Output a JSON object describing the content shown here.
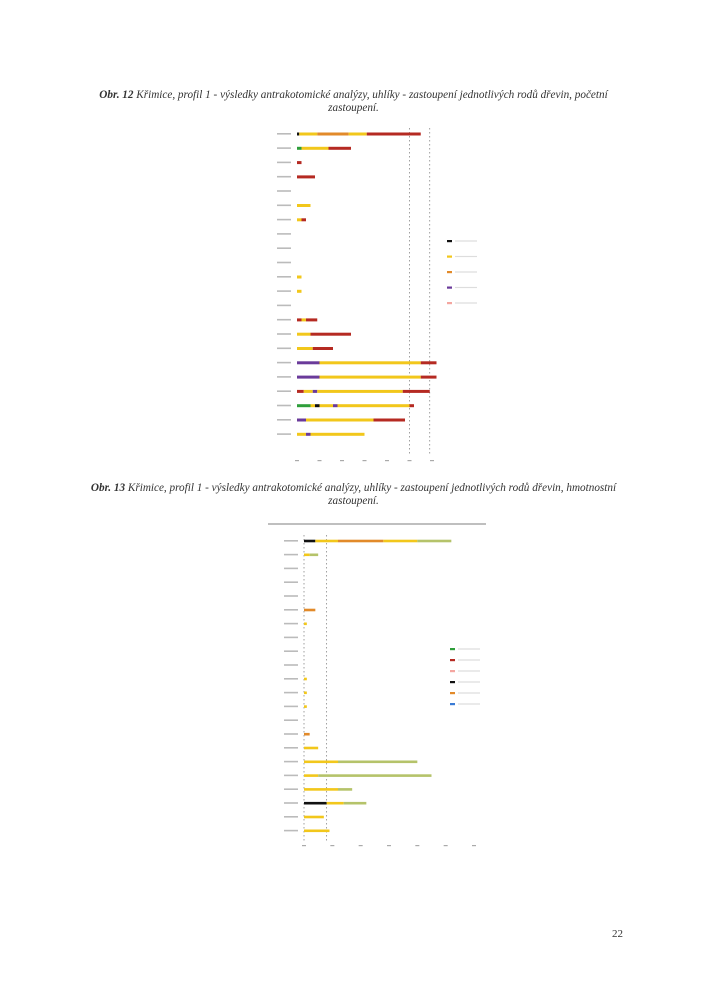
{
  "figures": [
    {
      "label": "Obr. 12",
      "caption": "Křimice, profil 1 - výsledky antrakotomické analýzy, uhlíky - zastoupení jednotlivých rodů dřevin, početní zastoupení."
    },
    {
      "label": "Obr. 13",
      "caption": "Křimice, profil 1 - výsledky antrakotomické analýzy, uhlíky - zastoupení jednotlivých rodů dřevin, hmotnostní zastoupení."
    }
  ],
  "page_number": "22",
  "chart_data": [
    {
      "type": "bar",
      "stacked": true,
      "orientation": "horizontal",
      "title": "",
      "xlabel": "",
      "ylabel": "",
      "xlim": [
        0,
        60
      ],
      "legend_position": "right",
      "colors": {
        "green": "#2e9e3a",
        "yellow": "#f2c71b",
        "orange": "#e28a2a",
        "red": "#b52a22",
        "purple": "#6a3a9a",
        "black": "#111111"
      },
      "rows": [
        {
          "segments": [
            [
              "black",
              1
            ],
            [
              "yellow",
              8
            ],
            [
              "orange",
              14
            ],
            [
              "yellow",
              8
            ],
            [
              "red",
              24
            ]
          ]
        },
        {
          "segments": [
            [
              "green",
              2
            ],
            [
              "yellow",
              12
            ],
            [
              "red",
              10
            ]
          ]
        },
        {
          "segments": [
            [
              "red",
              2
            ]
          ]
        },
        {
          "segments": [
            [
              "red",
              8
            ]
          ]
        },
        {
          "segments": []
        },
        {
          "segments": [
            [
              "yellow",
              6
            ]
          ]
        },
        {
          "segments": [
            [
              "yellow",
              2
            ],
            [
              "red",
              2
            ]
          ]
        },
        {
          "segments": []
        },
        {
          "segments": []
        },
        {
          "segments": []
        },
        {
          "segments": [
            [
              "yellow",
              2
            ]
          ]
        },
        {
          "segments": [
            [
              "yellow",
              2
            ]
          ]
        },
        {
          "segments": []
        },
        {
          "segments": [
            [
              "red",
              2
            ],
            [
              "yellow",
              2
            ],
            [
              "red",
              5
            ]
          ]
        },
        {
          "segments": [
            [
              "yellow",
              6
            ],
            [
              "red",
              18
            ]
          ]
        },
        {
          "segments": [
            [
              "yellow",
              7
            ],
            [
              "red",
              9
            ]
          ]
        },
        {
          "segments": [
            [
              "purple",
              10
            ],
            [
              "yellow",
              45
            ],
            [
              "red",
              7
            ]
          ]
        },
        {
          "segments": [
            [
              "purple",
              10
            ],
            [
              "yellow",
              45
            ],
            [
              "red",
              7
            ]
          ]
        },
        {
          "segments": [
            [
              "red",
              3
            ],
            [
              "yellow",
              4
            ],
            [
              "purple",
              2
            ],
            [
              "yellow",
              38
            ],
            [
              "red",
              12
            ]
          ]
        },
        {
          "segments": [
            [
              "green",
              6
            ],
            [
              "yellow",
              2
            ],
            [
              "black",
              2
            ],
            [
              "yellow",
              6
            ],
            [
              "purple",
              2
            ],
            [
              "yellow",
              32
            ],
            [
              "red",
              2
            ]
          ]
        },
        {
          "segments": [
            [
              "purple",
              4
            ],
            [
              "yellow",
              30
            ],
            [
              "red",
              14
            ]
          ]
        },
        {
          "segments": [
            [
              "yellow",
              4
            ],
            [
              "purple",
              2
            ],
            [
              "yellow",
              24
            ]
          ]
        }
      ],
      "legend": [
        {
          "color": "#111111"
        },
        {
          "color": "#f2c71b"
        },
        {
          "color": "#e28a2a"
        },
        {
          "color": "#6a3a9a"
        },
        {
          "color": "#f4a6a0"
        }
      ]
    },
    {
      "type": "bar",
      "stacked": true,
      "orientation": "horizontal",
      "title": "",
      "xlabel": "",
      "ylabel": "",
      "xlim": [
        0,
        60
      ],
      "legend_position": "right",
      "colors": {
        "black": "#111111",
        "yellow": "#f2c71b",
        "orange": "#e28a2a",
        "olive": "#b5c36a",
        "blue": "#3a7bd5"
      },
      "rows": [
        {
          "segments": [
            [
              "black",
              4
            ],
            [
              "yellow",
              8
            ],
            [
              "orange",
              16
            ],
            [
              "yellow",
              12
            ],
            [
              "olive",
              12
            ]
          ]
        },
        {
          "segments": [
            [
              "yellow",
              2
            ],
            [
              "olive",
              3
            ]
          ]
        },
        {
          "segments": []
        },
        {
          "segments": []
        },
        {
          "segments": []
        },
        {
          "segments": [
            [
              "orange",
              4
            ]
          ]
        },
        {
          "segments": [
            [
              "yellow",
              1
            ]
          ]
        },
        {
          "segments": []
        },
        {
          "segments": []
        },
        {
          "segments": []
        },
        {
          "segments": [
            [
              "yellow",
              1
            ]
          ]
        },
        {
          "segments": [
            [
              "yellow",
              1
            ]
          ]
        },
        {
          "segments": [
            [
              "yellow",
              1
            ]
          ]
        },
        {
          "segments": []
        },
        {
          "segments": [
            [
              "orange",
              2
            ]
          ]
        },
        {
          "segments": [
            [
              "yellow",
              5
            ]
          ]
        },
        {
          "segments": [
            [
              "yellow",
              12
            ],
            [
              "olive",
              28
            ]
          ]
        },
        {
          "segments": [
            [
              "yellow",
              5
            ],
            [
              "olive",
              40
            ]
          ]
        },
        {
          "segments": [
            [
              "yellow",
              12
            ],
            [
              "olive",
              5
            ]
          ]
        },
        {
          "segments": [
            [
              "black",
              8
            ],
            [
              "yellow",
              6
            ],
            [
              "olive",
              8
            ]
          ]
        },
        {
          "segments": [
            [
              "yellow",
              7
            ]
          ]
        },
        {
          "segments": [
            [
              "yellow",
              9
            ]
          ]
        }
      ],
      "legend": [
        {
          "color": "#2e9e3a"
        },
        {
          "color": "#b52a22"
        },
        {
          "color": "#f4a6a0"
        },
        {
          "color": "#111111"
        },
        {
          "color": "#e28a2a"
        },
        {
          "color": "#3a7bd5"
        }
      ]
    }
  ]
}
